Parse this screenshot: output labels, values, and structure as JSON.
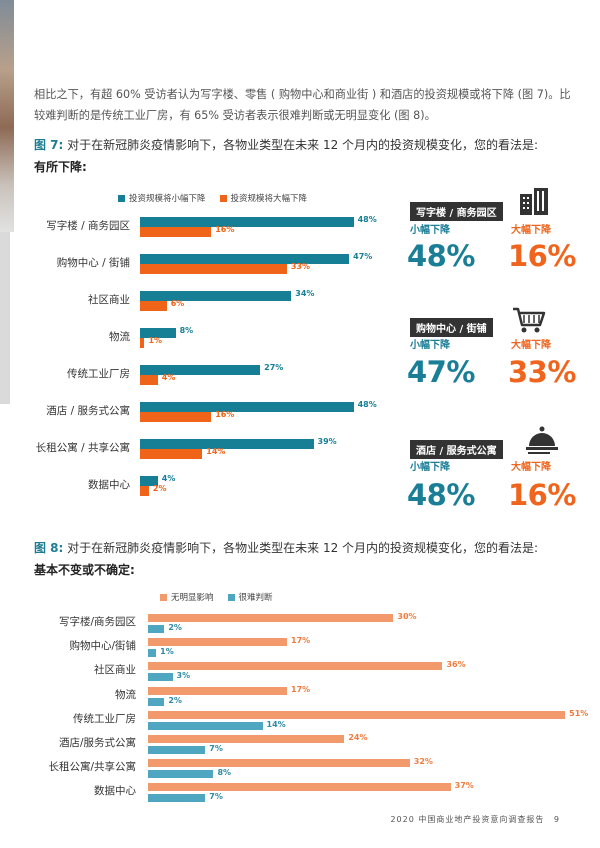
{
  "intro_text": "相比之下，有超 60% 受访者认为写字楼、零售 ( 购物中心和商业街 ) 和酒店的投资规模或将下降 (图 7)。比较难判断的是传统工业厂房，有 65% 受访者表示很难判断或无明显变化 (图 8)。",
  "fig7": {
    "number": "图 7:",
    "title": "对于在新冠肺炎疫情影响下，各物业类型在未来 12 个月内的投资规模变化，您的看法是:",
    "subtitle": "有所下降:"
  },
  "fig8": {
    "number": "图 8:",
    "title": "对于在新冠肺炎疫情影响下，各物业类型在未来 12 个月内的投资规模变化，您的看法是:",
    "subtitle": "基本不变或不确定:"
  },
  "colors": {
    "teal": "#167f96",
    "orange": "#ef6418",
    "salmon": "#f39a6c",
    "lightblue": "#4ea6c0"
  },
  "chart_data": [
    {
      "type": "bar",
      "orientation": "horizontal",
      "categories": [
        "写字楼 / 商务园区",
        "购物中心 / 街铺",
        "社区商业",
        "物流",
        "传统工业厂房",
        "酒店 / 服务式公寓",
        "长租公寓 / 共享公寓",
        "数据中心"
      ],
      "series": [
        {
          "name": "投资规模将小幅下降",
          "values": [
            48,
            47,
            34,
            8,
            27,
            48,
            39,
            4
          ],
          "labels": [
            "48%",
            "47%",
            "34%",
            "8%",
            "27%",
            "48%",
            "39%",
            "4%"
          ]
        },
        {
          "name": "投资规模将大幅下降",
          "values": [
            16,
            33,
            6,
            1,
            4,
            16,
            14,
            2
          ],
          "labels": [
            "16%",
            "33%",
            "6%",
            "1%",
            "4%",
            "16%",
            "14%",
            "2%"
          ]
        }
      ],
      "unit": "%",
      "legend": "top"
    },
    {
      "type": "bar",
      "orientation": "horizontal",
      "categories": [
        "写字楼/商务园区",
        "购物中心/街铺",
        "社区商业",
        "物流",
        "传统工业厂房",
        "酒店/服务式公寓",
        "长租公寓/共享公寓",
        "数据中心"
      ],
      "series": [
        {
          "name": "无明显影响",
          "values": [
            30,
            17,
            36,
            17,
            51,
            24,
            32,
            37
          ],
          "labels": [
            "30%",
            "17%",
            "36%",
            "17%",
            "51%",
            "24%",
            "32%",
            "37%"
          ]
        },
        {
          "name": "很难判断",
          "values": [
            2,
            1,
            3,
            2,
            14,
            7,
            8,
            7
          ],
          "labels": [
            "2%",
            "1%",
            "3%",
            "2%",
            "14%",
            "7%",
            "8%",
            "7%"
          ]
        }
      ],
      "unit": "%",
      "legend": "top"
    }
  ],
  "highlights": [
    {
      "title": "写字楼 / 商务园区",
      "icon": "office-building-icon",
      "small_label": "小幅下降",
      "small_value": "48%",
      "large_label": "大幅下降",
      "large_value": "16%"
    },
    {
      "title": "购物中心 / 街铺",
      "icon": "shopping-cart-icon",
      "small_label": "小幅下降",
      "small_value": "47%",
      "large_label": "大幅下降",
      "large_value": "33%"
    },
    {
      "title": "酒店 / 服务式公寓",
      "icon": "hotel-cloche-icon",
      "small_label": "小幅下降",
      "small_value": "48%",
      "large_label": "大幅下降",
      "large_value": "16%"
    }
  ],
  "footer": {
    "text": "2020 中国商业地产投资意向调查报告",
    "page": "9"
  }
}
